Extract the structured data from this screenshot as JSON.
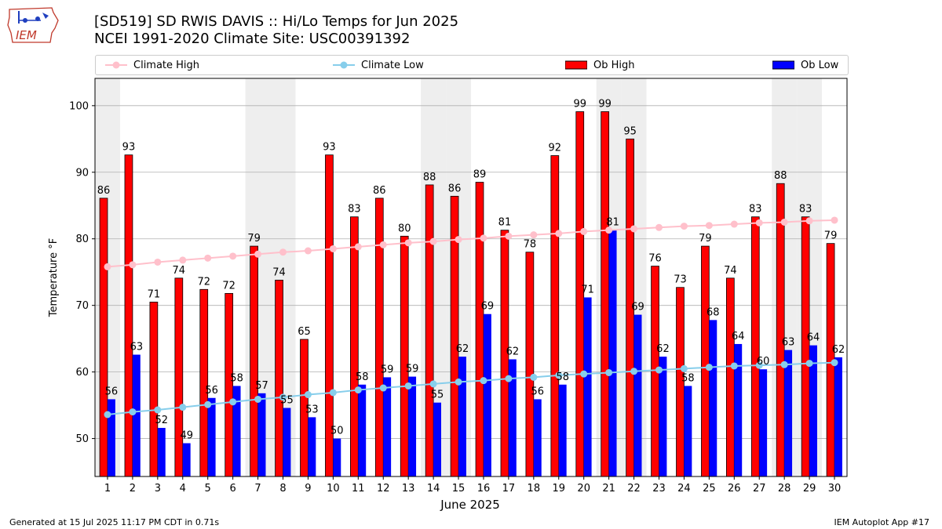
{
  "header": {
    "title": "[SD519] SD RWIS DAVIS :: Hi/Lo Temps for Jun 2025",
    "subtitle": "NCEI 1991-2020 Climate Site: USC00391392"
  },
  "logo": {
    "text": "IEM",
    "icon": "iem-iowa-logo"
  },
  "footer": {
    "left": "Generated at 15 Jul 2025 11:17 PM CDT in 0.71s",
    "right": "IEM Autoplot App #17"
  },
  "colors": {
    "climate_high": "#ffc0cb",
    "climate_low": "#87ceeb",
    "ob_high": "#ff0000",
    "ob_low": "#0000ff",
    "weekend_shade": "#eeeeee",
    "grid": "#b0b0b0"
  },
  "chart_data": {
    "type": "bar",
    "xlabel": "June 2025",
    "ylabel": "Temperature °F",
    "ylim": [
      44.3,
      104.1
    ],
    "yticks": [
      50,
      60,
      70,
      80,
      90,
      100
    ],
    "grid": "horizontal",
    "legend_placement": "top",
    "categories": [
      "1",
      "2",
      "3",
      "4",
      "5",
      "6",
      "7",
      "8",
      "9",
      "10",
      "11",
      "12",
      "13",
      "14",
      "15",
      "16",
      "17",
      "18",
      "19",
      "20",
      "21",
      "22",
      "23",
      "24",
      "25",
      "26",
      "27",
      "28",
      "29",
      "30"
    ],
    "shaded_days": [
      1,
      7,
      8,
      14,
      15,
      21,
      22,
      28,
      29
    ],
    "series": [
      {
        "name": "Climate High",
        "kind": "line",
        "values": [
          75.8,
          76.1,
          76.5,
          76.8,
          77.1,
          77.4,
          77.7,
          78.0,
          78.2,
          78.5,
          78.8,
          79.1,
          79.4,
          79.6,
          79.9,
          80.1,
          80.4,
          80.6,
          80.8,
          81.1,
          81.3,
          81.5,
          81.7,
          81.9,
          82.0,
          82.2,
          82.4,
          82.5,
          82.7,
          82.8
        ]
      },
      {
        "name": "Climate Low",
        "kind": "line",
        "values": [
          53.6,
          54.0,
          54.3,
          54.7,
          55.1,
          55.5,
          55.9,
          56.2,
          56.6,
          56.9,
          57.3,
          57.6,
          57.9,
          58.2,
          58.5,
          58.7,
          59.0,
          59.2,
          59.5,
          59.7,
          59.9,
          60.1,
          60.3,
          60.5,
          60.7,
          60.9,
          61.0,
          61.1,
          61.3,
          61.4
        ]
      },
      {
        "name": "Ob High",
        "kind": "bar",
        "values": [
          86.1,
          92.6,
          70.5,
          74.1,
          72.4,
          71.8,
          78.9,
          73.8,
          64.9,
          92.6,
          83.3,
          86.1,
          80.4,
          88.1,
          86.4,
          88.5,
          81.3,
          78.0,
          92.5,
          99.1,
          99.1,
          95.0,
          75.9,
          72.7,
          78.9,
          74.1,
          83.3,
          88.3,
          83.3,
          79.3
        ],
        "labels": [
          "86",
          "93",
          "71",
          "74",
          "72",
          "72",
          "79",
          "74",
          "65",
          "93",
          "83",
          "86",
          "80",
          "88",
          "86",
          "89",
          "81",
          "78",
          "92",
          "99",
          "99",
          "95",
          "76",
          "73",
          "79",
          "74",
          "83",
          "88",
          "83",
          "79"
        ]
      },
      {
        "name": "Ob Low",
        "kind": "bar",
        "values": [
          55.9,
          62.6,
          51.6,
          49.3,
          56.1,
          57.9,
          56.8,
          54.6,
          53.2,
          50.0,
          58.1,
          59.2,
          59.3,
          55.4,
          62.3,
          68.7,
          61.9,
          55.9,
          58.1,
          71.2,
          81.3,
          68.6,
          62.3,
          57.9,
          67.8,
          64.2,
          60.4,
          63.3,
          64.0,
          62.2
        ],
        "labels": [
          "56",
          "63",
          "52",
          "49",
          "56",
          "58",
          "57",
          "55",
          "53",
          "50",
          "58",
          "59",
          "59",
          "55",
          "62",
          "69",
          "62",
          "56",
          "58",
          "71",
          "81",
          "69",
          "62",
          "58",
          "68",
          "64",
          "60",
          "63",
          "64",
          "62"
        ]
      }
    ]
  }
}
